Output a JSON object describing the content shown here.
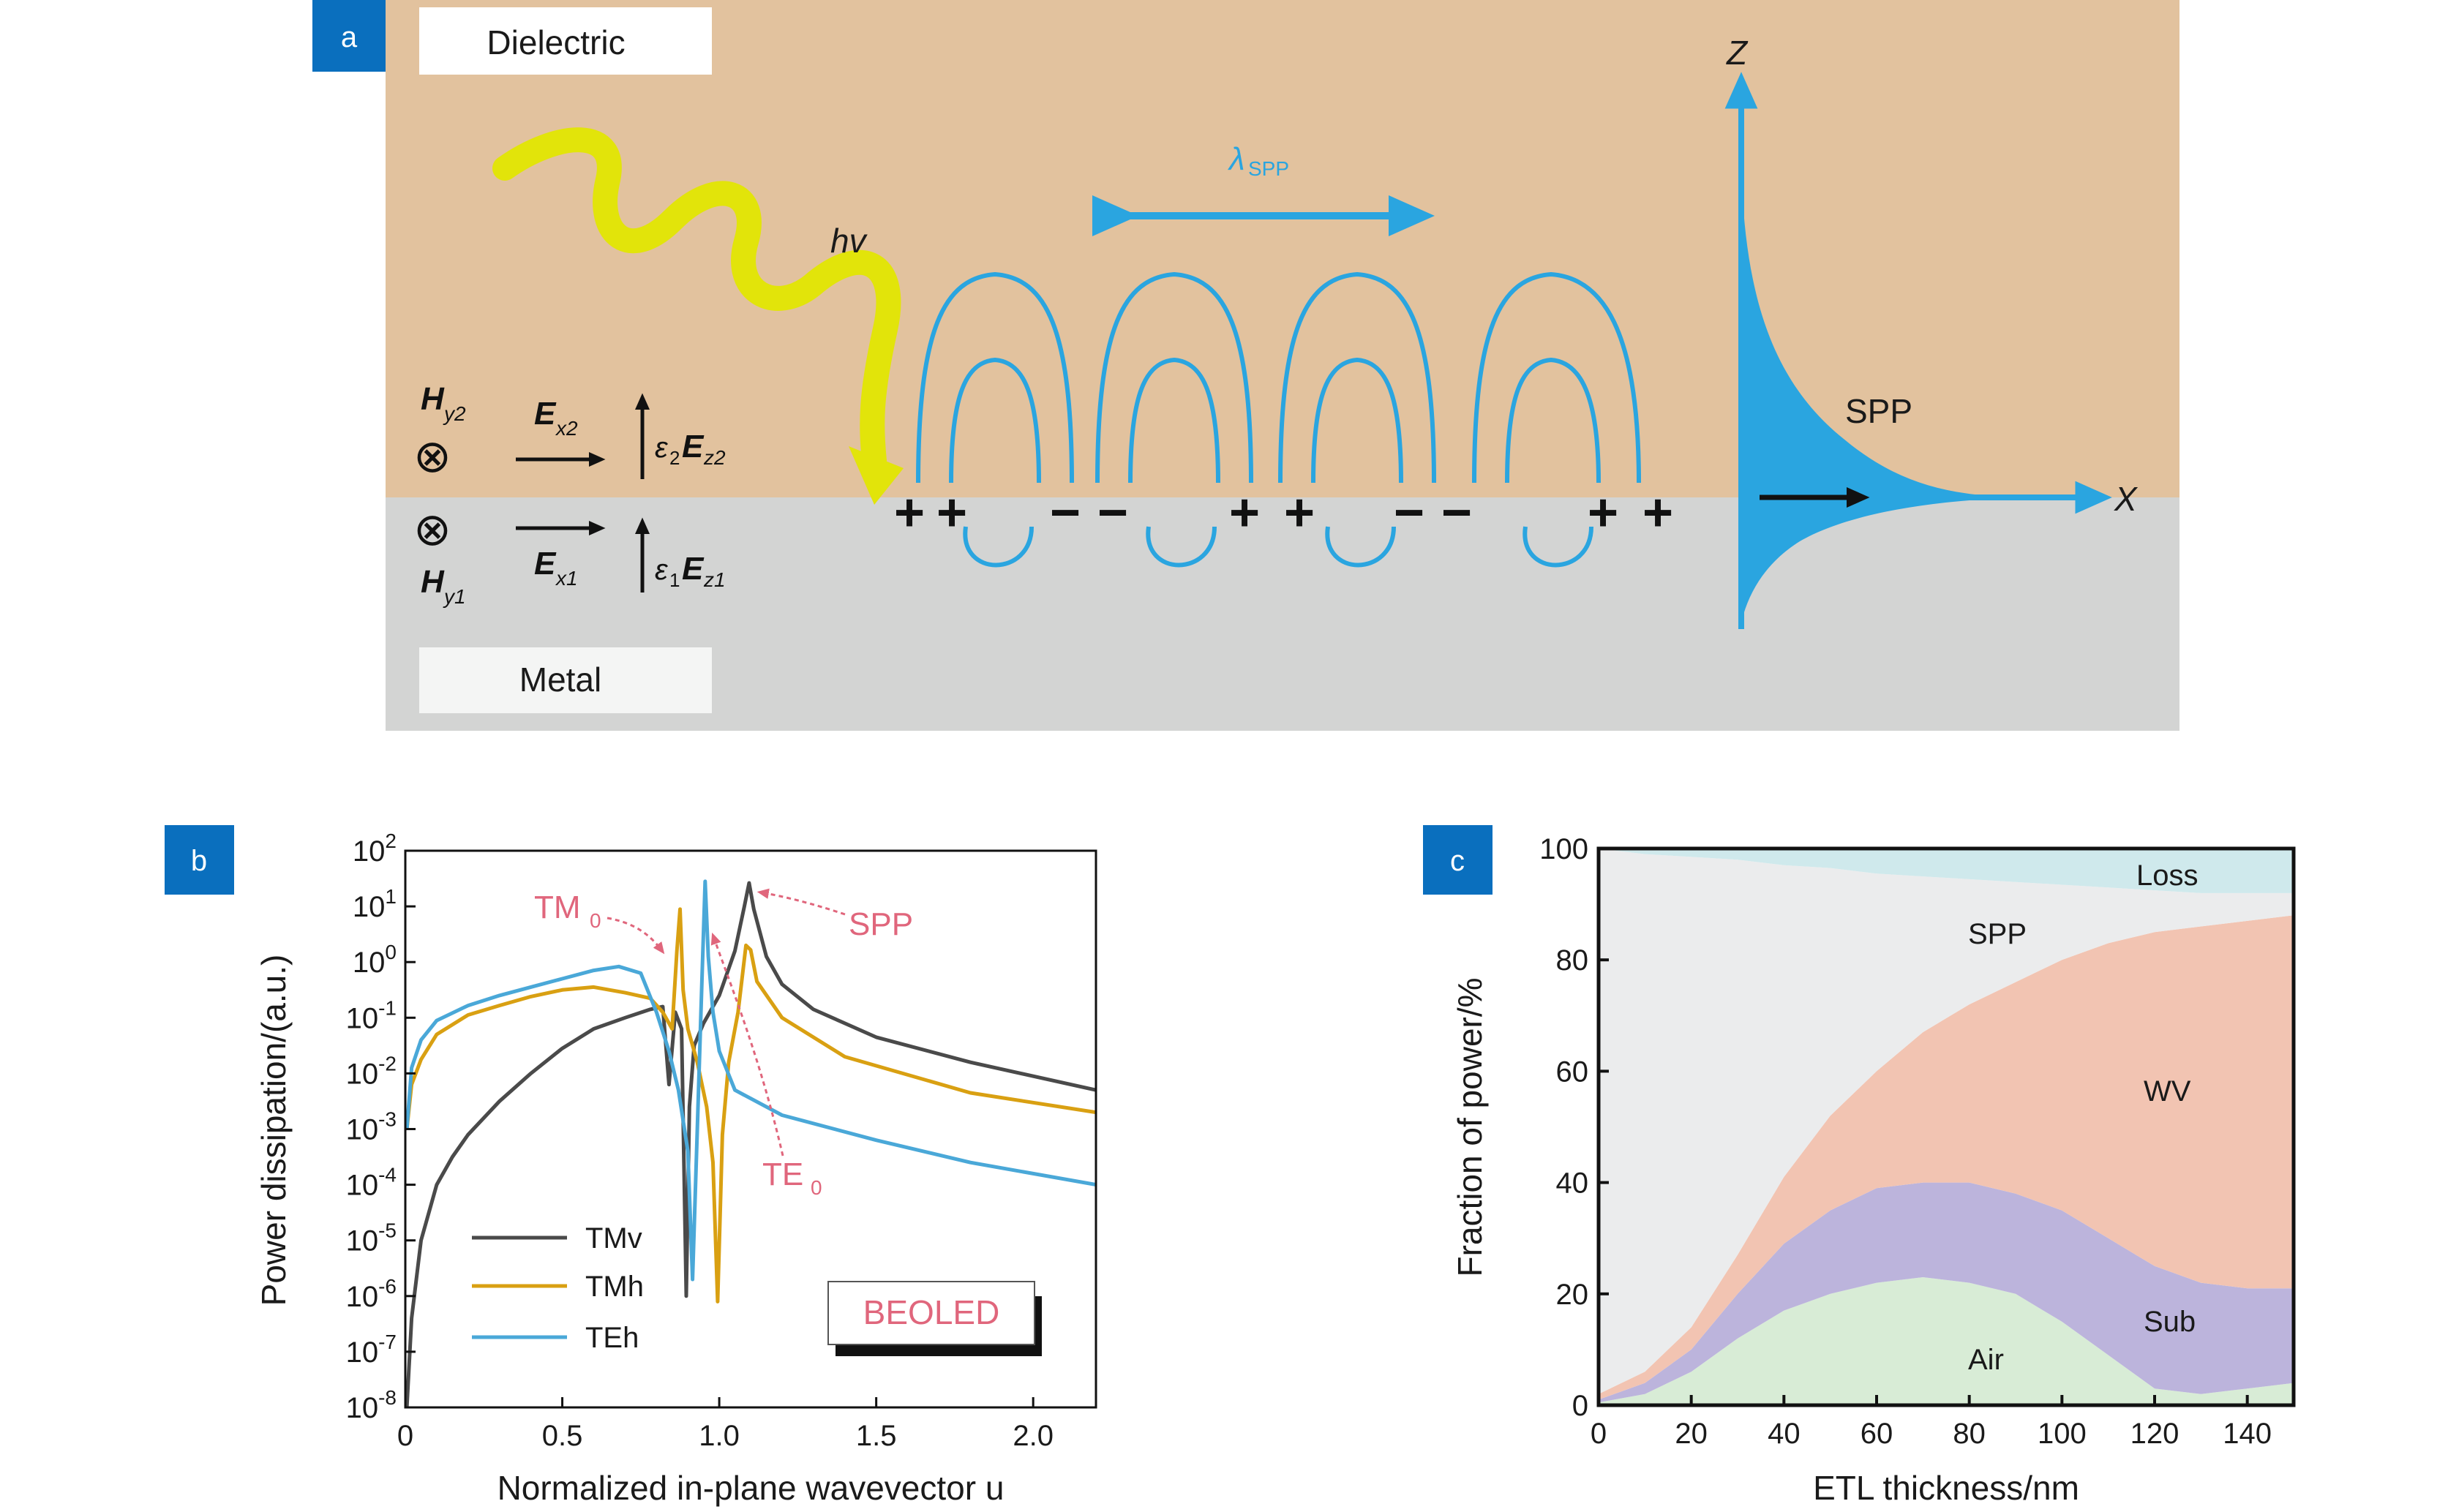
{
  "panel_a": {
    "tag": "a",
    "dielectric_label": "Dielectric",
    "metal_label": "Metal",
    "photon_label": "hv",
    "wavelength_label": "λ",
    "wavelength_sub": "SPP",
    "spp_label": "SPP",
    "axis_z": "Z",
    "axis_x": "X",
    "field_upper": {
      "H": "H",
      "H_sub": "y2",
      "E": "E",
      "E_sub": "x2",
      "eps": "ε",
      "eps_sub": "2",
      "Ez": "E",
      "Ez_sub": "z2"
    },
    "field_lower": {
      "H": "H",
      "H_sub": "y1",
      "E": "E",
      "E_sub": "x1",
      "eps": "ε",
      "eps_sub": "1",
      "Ez": "E",
      "Ez_sub": "z1"
    },
    "cross_symbol": "⊗",
    "charges": [
      "+",
      "+",
      "−",
      "−",
      "+",
      "+",
      "−",
      "−",
      "+",
      "+"
    ],
    "colors": {
      "dielectric": "#e2c29e",
      "metal": "#d3d4d3",
      "photon": "#e2e40a",
      "field": "#2aa5e0"
    }
  },
  "panel_b": {
    "tag": "b",
    "chart_data": {
      "type": "line",
      "xlabel": "Normalized in-plane wavevector u",
      "ylabel": "Power dissipation/(a.u.)",
      "xlim": [
        0,
        2.2
      ],
      "ylim_log10": [
        -8,
        2
      ],
      "x_ticks": [
        "0",
        "0.5",
        "1.0",
        "1.5",
        "2.0"
      ],
      "x_tick_values": [
        0,
        0.5,
        1.0,
        1.5,
        2.0
      ],
      "y_tick_base": "10",
      "y_tick_exponents": [
        "2",
        "1",
        "0",
        "-1",
        "-2",
        "-3",
        "-4",
        "-5",
        "-6",
        "-7",
        "-8"
      ],
      "legend": [
        "TMv",
        "TMh",
        "TEh"
      ],
      "inset_label": "BEOLED",
      "annotations": [
        {
          "text": "TM",
          "sub": "0"
        },
        {
          "text": "TE",
          "sub": "0"
        },
        {
          "text": "SPP",
          "sub": ""
        }
      ],
      "series": [
        {
          "name": "TMv",
          "color": "#4a4a4a",
          "u": [
            0.005,
            0.02,
            0.05,
            0.1,
            0.15,
            0.2,
            0.3,
            0.4,
            0.5,
            0.6,
            0.7,
            0.78,
            0.82,
            0.84,
            0.86,
            0.88,
            0.895,
            0.905,
            0.92,
            0.95,
            1.0,
            1.05,
            1.08,
            1.095,
            1.11,
            1.15,
            1.2,
            1.3,
            1.5,
            1.8,
            2.2
          ],
          "log10": [
            -8.0,
            -6.4,
            -5.0,
            -4.0,
            -3.5,
            -3.1,
            -2.5,
            -2.0,
            -1.55,
            -1.2,
            -1.0,
            -0.85,
            -0.8,
            -2.2,
            -0.9,
            -1.2,
            -6.0,
            -2.6,
            -1.5,
            -1.1,
            -0.6,
            0.2,
            1.0,
            1.42,
            0.95,
            0.1,
            -0.4,
            -0.85,
            -1.35,
            -1.8,
            -2.3
          ]
        },
        {
          "name": "TMh",
          "color": "#d9a012",
          "u": [
            0.005,
            0.02,
            0.05,
            0.1,
            0.2,
            0.3,
            0.4,
            0.5,
            0.6,
            0.7,
            0.78,
            0.82,
            0.85,
            0.865,
            0.875,
            0.885,
            0.9,
            0.93,
            0.96,
            0.98,
            0.995,
            1.01,
            1.03,
            1.06,
            1.085,
            1.1,
            1.12,
            1.2,
            1.4,
            1.8,
            2.2
          ],
          "log10": [
            -3.0,
            -2.2,
            -1.75,
            -1.3,
            -0.95,
            -0.78,
            -0.62,
            -0.5,
            -0.45,
            -0.55,
            -0.65,
            -0.9,
            -1.2,
            0.2,
            0.95,
            -0.5,
            -1.2,
            -1.8,
            -2.6,
            -3.6,
            -6.1,
            -3.1,
            -1.8,
            -0.9,
            0.3,
            0.22,
            -0.35,
            -1.0,
            -1.7,
            -2.35,
            -2.7
          ]
        },
        {
          "name": "TEh",
          "color": "#4aa8d8",
          "u": [
            0.005,
            0.02,
            0.05,
            0.1,
            0.2,
            0.3,
            0.4,
            0.5,
            0.6,
            0.68,
            0.75,
            0.8,
            0.84,
            0.87,
            0.9,
            0.915,
            0.93,
            0.945,
            0.955,
            0.965,
            0.98,
            1.0,
            1.05,
            1.2,
            1.5,
            1.8,
            2.2
          ],
          "log10": [
            -3.0,
            -1.9,
            -1.4,
            -1.05,
            -0.78,
            -0.6,
            -0.45,
            -0.3,
            -0.15,
            -0.08,
            -0.2,
            -0.9,
            -1.6,
            -2.3,
            -3.4,
            -5.7,
            -3.0,
            -0.3,
            1.45,
            0.1,
            -0.9,
            -1.6,
            -2.3,
            -2.75,
            -3.2,
            -3.6,
            -4.0
          ]
        }
      ]
    }
  },
  "panel_c": {
    "tag": "c",
    "chart_data": {
      "type": "area",
      "xlabel": "ETL thickness/nm",
      "ylabel": "Fraction of power/%",
      "xlim": [
        0,
        150
      ],
      "ylim": [
        0,
        100
      ],
      "x_ticks": [
        "0",
        "20",
        "40",
        "60",
        "80",
        "100",
        "120",
        "140"
      ],
      "x_tick_values": [
        0,
        20,
        40,
        60,
        80,
        100,
        120,
        140
      ],
      "y_ticks": [
        "0",
        "20",
        "40",
        "60",
        "80",
        "100"
      ],
      "y_tick_values": [
        0,
        20,
        40,
        60,
        80,
        100
      ],
      "x": [
        0,
        10,
        20,
        30,
        40,
        50,
        60,
        70,
        80,
        90,
        100,
        110,
        120,
        130,
        140,
        150
      ],
      "stack_order": [
        "Air",
        "Sub",
        "WV",
        "SPP",
        "Loss"
      ],
      "series": [
        {
          "name": "Air",
          "color": "#d8ecd6",
          "cumulative": [
            0.5,
            2,
            6,
            12,
            17,
            20,
            22,
            23,
            22,
            20,
            15,
            9,
            3,
            2,
            3,
            4
          ]
        },
        {
          "name": "Sub",
          "color": "#bcb4dc",
          "cumulative": [
            1,
            4,
            10,
            20,
            29,
            35,
            39,
            40,
            40,
            38,
            35,
            30,
            25,
            22,
            21,
            21
          ]
        },
        {
          "name": "WV",
          "color": "#f2c4b2",
          "cumulative": [
            2,
            6,
            14,
            27,
            41,
            52,
            60,
            67,
            72,
            76,
            80,
            83,
            85,
            86,
            87,
            88
          ]
        },
        {
          "name": "SPP",
          "color": "#ebeced",
          "cumulative": [
            100,
            99,
            98.5,
            98,
            97,
            96.5,
            95.5,
            95,
            94.5,
            94,
            93.5,
            93,
            92.5,
            92,
            92,
            92
          ]
        },
        {
          "name": "Loss",
          "color": "#cfe9ec",
          "cumulative": [
            100,
            100,
            100,
            100,
            100,
            100,
            100,
            100,
            100,
            100,
            100,
            100,
            100,
            100,
            100,
            100
          ]
        }
      ]
    }
  }
}
